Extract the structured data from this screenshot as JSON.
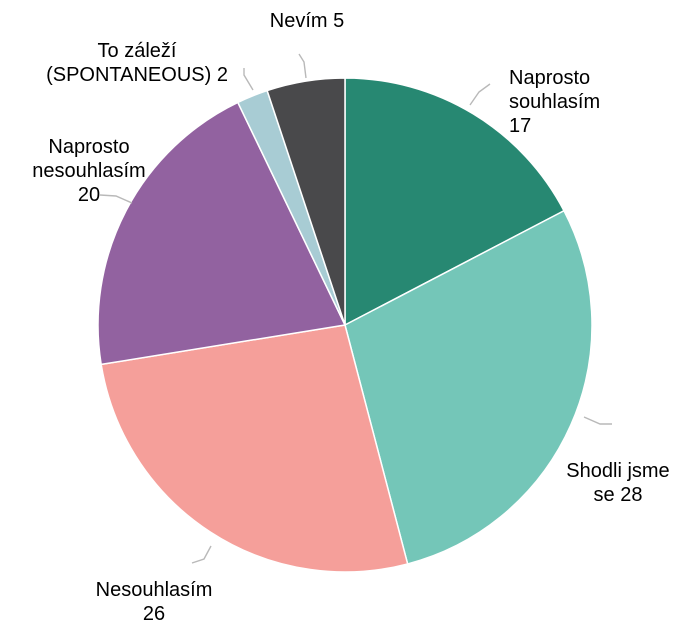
{
  "chart_data": {
    "type": "pie",
    "title": "",
    "start_angle_deg": 0,
    "direction": "clockwise",
    "legend": "none",
    "slices": [
      {
        "key": "naprosto-souhlasim",
        "label_lines": [
          "Naprosto",
          "souhlasím",
          "17"
        ],
        "value": 17,
        "color": "#278872"
      },
      {
        "key": "shodli-jsme-se",
        "label_lines": [
          "Shodli jsme",
          "se 28"
        ],
        "value": 28,
        "color": "#74c6b8"
      },
      {
        "key": "nesouhlasim",
        "label_lines": [
          "Nesouhlasím",
          "26"
        ],
        "value": 26,
        "color": "#f59f9a"
      },
      {
        "key": "naprosto-nesouhlasim",
        "label_lines": [
          "Naprosto",
          "nesouhlasím",
          "20"
        ],
        "value": 20,
        "color": "#9262a0"
      },
      {
        "key": "to-zalezi",
        "label_lines": [
          "To záleží",
          "(SPONTANEOUS) 2"
        ],
        "value": 2,
        "color": "#a8ccd4"
      },
      {
        "key": "nevim",
        "label_lines": [
          "Nevím 5"
        ],
        "value": 5,
        "color": "#49494b"
      }
    ]
  }
}
